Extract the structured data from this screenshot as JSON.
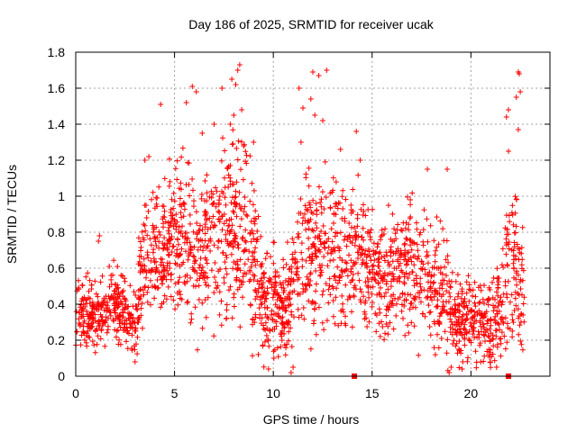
{
  "chart_data": {
    "type": "scatter",
    "title": "Day 186 of 2025, SRMTID for receiver ucak",
    "xlabel": "GPS time / hours",
    "ylabel": "SRMTID / TECUs",
    "xlim": [
      0,
      24
    ],
    "ylim": [
      0,
      1.8
    ],
    "grid": true,
    "x_ticks": [
      0,
      5,
      10,
      15,
      20
    ],
    "x_tick_labels": [
      "0",
      "5",
      "10",
      "15",
      "20"
    ],
    "y_ticks": [
      0,
      0.2,
      0.4,
      0.6,
      0.8,
      1.0,
      1.2,
      1.4,
      1.6,
      1.8
    ],
    "y_tick_labels": [
      "0",
      "0.2",
      "0.4",
      "0.6",
      "0.8",
      "1",
      "1.2",
      "1.4",
      "1.6",
      "1.8"
    ],
    "series": [
      {
        "name": "SRMTID",
        "marker": "plus",
        "color": "#ff0000",
        "profile": [
          {
            "x": 0.0,
            "y": 0.35,
            "spread": 0.12
          },
          {
            "x": 1.0,
            "y": 0.33,
            "spread": 0.12
          },
          {
            "x": 2.0,
            "y": 0.38,
            "spread": 0.12
          },
          {
            "x": 3.0,
            "y": 0.3,
            "spread": 0.12
          },
          {
            "x": 3.5,
            "y": 0.65,
            "spread": 0.22
          },
          {
            "x": 4.5,
            "y": 0.72,
            "spread": 0.22
          },
          {
            "x": 5.5,
            "y": 0.75,
            "spread": 0.25
          },
          {
            "x": 6.5,
            "y": 0.7,
            "spread": 0.25
          },
          {
            "x": 7.5,
            "y": 0.8,
            "spread": 0.28
          },
          {
            "x": 8.5,
            "y": 0.85,
            "spread": 0.3
          },
          {
            "x": 9.5,
            "y": 0.42,
            "spread": 0.18
          },
          {
            "x": 10.5,
            "y": 0.38,
            "spread": 0.18
          },
          {
            "x": 11.5,
            "y": 0.65,
            "spread": 0.25
          },
          {
            "x": 12.5,
            "y": 0.78,
            "spread": 0.28
          },
          {
            "x": 13.5,
            "y": 0.68,
            "spread": 0.25
          },
          {
            "x": 14.5,
            "y": 0.62,
            "spread": 0.22
          },
          {
            "x": 15.5,
            "y": 0.55,
            "spread": 0.2
          },
          {
            "x": 16.5,
            "y": 0.6,
            "spread": 0.2
          },
          {
            "x": 17.5,
            "y": 0.58,
            "spread": 0.2
          },
          {
            "x": 18.5,
            "y": 0.45,
            "spread": 0.2
          },
          {
            "x": 19.5,
            "y": 0.32,
            "spread": 0.14
          },
          {
            "x": 20.5,
            "y": 0.28,
            "spread": 0.14
          },
          {
            "x": 21.5,
            "y": 0.35,
            "spread": 0.18
          },
          {
            "x": 22.0,
            "y": 0.7,
            "spread": 0.3
          },
          {
            "x": 22.7,
            "y": 0.45,
            "spread": 0.2
          }
        ],
        "extremes": [
          {
            "x": 8.3,
            "y": 1.73
          },
          {
            "x": 8.2,
            "y": 1.7
          },
          {
            "x": 7.9,
            "y": 1.65
          },
          {
            "x": 8.1,
            "y": 1.62
          },
          {
            "x": 5.9,
            "y": 1.61
          },
          {
            "x": 7.4,
            "y": 1.6
          },
          {
            "x": 6.1,
            "y": 1.58
          },
          {
            "x": 5.6,
            "y": 1.52
          },
          {
            "x": 4.3,
            "y": 1.51
          },
          {
            "x": 8.4,
            "y": 1.48
          },
          {
            "x": 8.0,
            "y": 1.45
          },
          {
            "x": 7.0,
            "y": 1.4
          },
          {
            "x": 6.4,
            "y": 1.35
          },
          {
            "x": 12.0,
            "y": 1.69
          },
          {
            "x": 12.7,
            "y": 1.7
          },
          {
            "x": 12.3,
            "y": 1.67
          },
          {
            "x": 11.3,
            "y": 1.6
          },
          {
            "x": 11.9,
            "y": 1.54
          },
          {
            "x": 11.5,
            "y": 1.49
          },
          {
            "x": 12.1,
            "y": 1.45
          },
          {
            "x": 12.5,
            "y": 1.42
          },
          {
            "x": 11.4,
            "y": 1.3
          },
          {
            "x": 14.2,
            "y": 1.36
          },
          {
            "x": 14.4,
            "y": 1.2
          },
          {
            "x": 13.4,
            "y": 1.26
          },
          {
            "x": 22.4,
            "y": 1.69
          },
          {
            "x": 22.45,
            "y": 1.68
          },
          {
            "x": 22.5,
            "y": 1.58
          },
          {
            "x": 22.3,
            "y": 1.55
          },
          {
            "x": 21.9,
            "y": 1.48
          },
          {
            "x": 21.8,
            "y": 1.44
          },
          {
            "x": 22.4,
            "y": 1.37
          },
          {
            "x": 21.9,
            "y": 1.25
          },
          {
            "x": 3.7,
            "y": 1.22
          },
          {
            "x": 3.5,
            "y": 1.2
          },
          {
            "x": 9.0,
            "y": 1.3
          },
          {
            "x": 17.8,
            "y": 1.15
          },
          {
            "x": 18.8,
            "y": 1.15
          },
          {
            "x": 1.2,
            "y": 0.78
          },
          {
            "x": 1.15,
            "y": 0.75
          },
          {
            "x": 10.9,
            "y": 0.02
          },
          {
            "x": 11.0,
            "y": 0.05
          },
          {
            "x": 18.9,
            "y": 0.02
          },
          {
            "x": 19.0,
            "y": 0.05
          },
          {
            "x": 3.0,
            "y": 0.08
          },
          {
            "x": 21.3,
            "y": 0.05
          }
        ],
        "markers_at_zero": [
          14.1,
          21.9
        ]
      }
    ]
  }
}
